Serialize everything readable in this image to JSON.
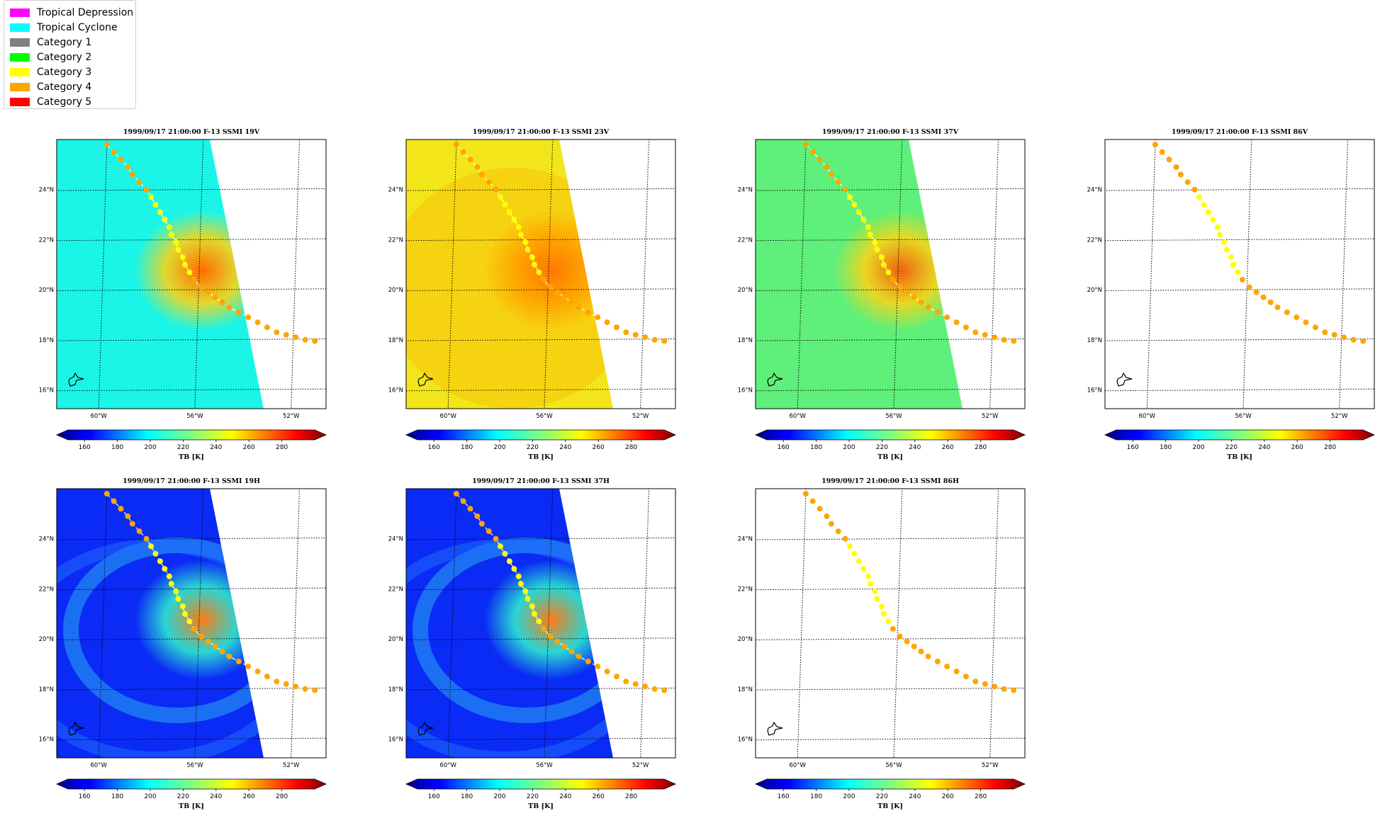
{
  "legend": {
    "items": [
      {
        "label": "Tropical Depression",
        "color": "#ff00ff"
      },
      {
        "label": "Tropical Cyclone",
        "color": "#00ffff"
      },
      {
        "label": "Category 1",
        "color": "#808080"
      },
      {
        "label": "Category 2",
        "color": "#00ff00"
      },
      {
        "label": "Category 3",
        "color": "#ffff00"
      },
      {
        "label": "Category 4",
        "color": "#ffa500"
      },
      {
        "label": "Category 5",
        "color": "#ff0000"
      }
    ]
  },
  "chart_data": [
    {
      "type": "heatmap",
      "title": "1999/09/17 21:00:00  F-13 SSMI 19V",
      "channel": "19V",
      "background": "cyan",
      "swath": true,
      "cbar_label": "TB [K]"
    },
    {
      "type": "heatmap",
      "title": "1999/09/17 21:00:00  F-13 SSMI 23V",
      "channel": "23V",
      "background": "yellow",
      "swath": true,
      "cbar_label": "TB [K]"
    },
    {
      "type": "heatmap",
      "title": "1999/09/17 21:00:00  F-13 SSMI 37V",
      "channel": "37V",
      "background": "green",
      "swath": true,
      "cbar_label": "TB [K]"
    },
    {
      "type": "heatmap",
      "title": "1999/09/17 21:00:00  F-13 SSMI 86V",
      "channel": "86V",
      "background": "none",
      "swath": false,
      "cbar_label": "TB [K]"
    },
    {
      "type": "heatmap",
      "title": "1999/09/17 21:00:00  F-13 SSMI 19H",
      "channel": "19H",
      "background": "blue",
      "swath": true,
      "cbar_label": "TB [K]"
    },
    {
      "type": "heatmap",
      "title": "1999/09/17 21:00:00  F-13 SSMI 37H",
      "channel": "37H",
      "background": "blue",
      "swath": true,
      "cbar_label": "TB [K]"
    },
    {
      "type": "heatmap",
      "title": "1999/09/17 21:00:00  F-13 SSMI 86H",
      "channel": "86H",
      "background": "none",
      "swath": false,
      "cbar_label": "TB [K]"
    }
  ],
  "axes": {
    "lon_labels": [
      "60°W",
      "56°W",
      "52°W"
    ],
    "lat_labels": [
      "24°N",
      "22°N",
      "20°N",
      "18°N",
      "16°N"
    ],
    "lon_values": [
      -60,
      -56,
      -52
    ],
    "lat_values": [
      24,
      22,
      20,
      18,
      16
    ]
  },
  "colorbar": {
    "ticks": [
      "160",
      "180",
      "200",
      "220",
      "240",
      "260",
      "280"
    ],
    "colormap": "jet",
    "range": [
      150,
      300
    ]
  },
  "track": {
    "points": [
      {
        "lon": -60.0,
        "lat": 25.8,
        "cat": "Category 4"
      },
      {
        "lon": -59.7,
        "lat": 25.5,
        "cat": "Category 4"
      },
      {
        "lon": -59.4,
        "lat": 25.2,
        "cat": "Category 4"
      },
      {
        "lon": -59.1,
        "lat": 24.9,
        "cat": "Category 4"
      },
      {
        "lon": -58.9,
        "lat": 24.6,
        "cat": "Category 4"
      },
      {
        "lon": -58.6,
        "lat": 24.3,
        "cat": "Category 4"
      },
      {
        "lon": -58.3,
        "lat": 24.0,
        "cat": "Category 4"
      },
      {
        "lon": -58.1,
        "lat": 23.7,
        "cat": "Category 3"
      },
      {
        "lon": -57.9,
        "lat": 23.4,
        "cat": "Category 3"
      },
      {
        "lon": -57.7,
        "lat": 23.1,
        "cat": "Category 3"
      },
      {
        "lon": -57.5,
        "lat": 22.8,
        "cat": "Category 3"
      },
      {
        "lon": -57.3,
        "lat": 22.5,
        "cat": "Category 3"
      },
      {
        "lon": -57.2,
        "lat": 22.2,
        "cat": "Category 3"
      },
      {
        "lon": -57.0,
        "lat": 21.9,
        "cat": "Category 3"
      },
      {
        "lon": -56.9,
        "lat": 21.6,
        "cat": "Category 3"
      },
      {
        "lon": -56.7,
        "lat": 21.3,
        "cat": "Category 3"
      },
      {
        "lon": -56.6,
        "lat": 21.0,
        "cat": "Category 3"
      },
      {
        "lon": -56.4,
        "lat": 20.7,
        "cat": "Category 3"
      },
      {
        "lon": -56.2,
        "lat": 20.4,
        "cat": "Category 4"
      },
      {
        "lon": -55.9,
        "lat": 20.1,
        "cat": "Category 4"
      },
      {
        "lon": -55.6,
        "lat": 19.9,
        "cat": "Category 4"
      },
      {
        "lon": -55.3,
        "lat": 19.7,
        "cat": "Category 4"
      },
      {
        "lon": -55.0,
        "lat": 19.5,
        "cat": "Category 4"
      },
      {
        "lon": -54.7,
        "lat": 19.3,
        "cat": "Category 4"
      },
      {
        "lon": -54.3,
        "lat": 19.1,
        "cat": "Category 4"
      },
      {
        "lon": -53.9,
        "lat": 18.9,
        "cat": "Category 4"
      },
      {
        "lon": -53.5,
        "lat": 18.7,
        "cat": "Category 4"
      },
      {
        "lon": -53.1,
        "lat": 18.5,
        "cat": "Category 4"
      },
      {
        "lon": -52.7,
        "lat": 18.3,
        "cat": "Category 4"
      },
      {
        "lon": -52.3,
        "lat": 18.2,
        "cat": "Category 4"
      },
      {
        "lon": -51.9,
        "lat": 18.1,
        "cat": "Category 4"
      },
      {
        "lon": -51.5,
        "lat": 18.0,
        "cat": "Category 4"
      },
      {
        "lon": -51.1,
        "lat": 17.95,
        "cat": "Category 4"
      }
    ]
  }
}
